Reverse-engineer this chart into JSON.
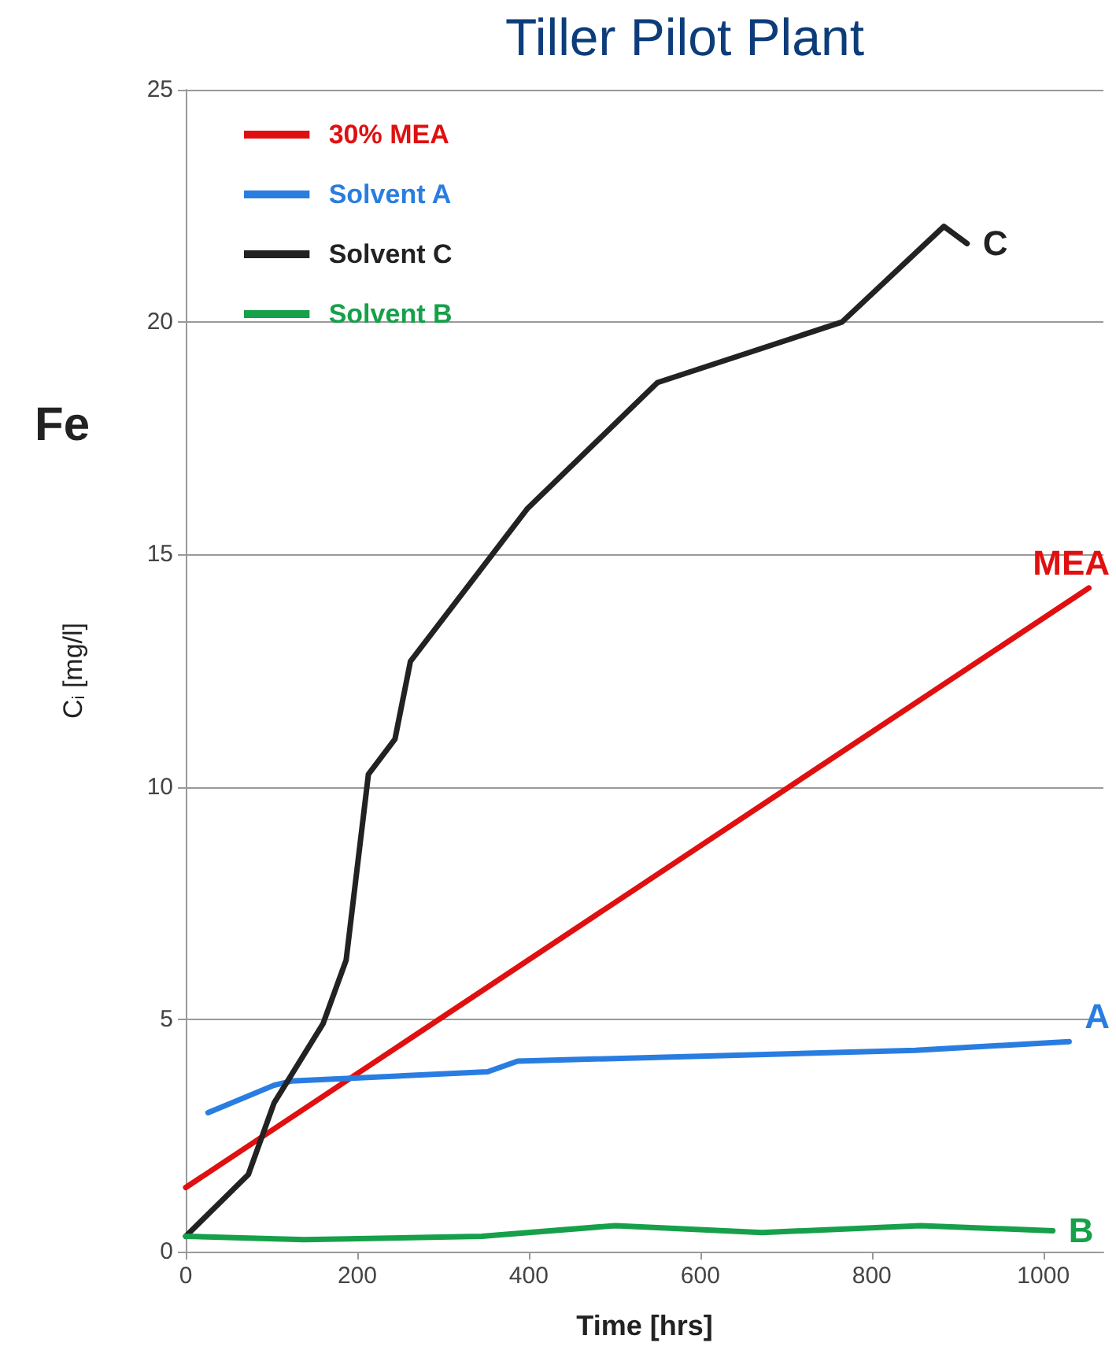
{
  "chart_data": {
    "type": "line",
    "title": "Tiller Pilot Plant",
    "xlabel": "Time [hrs]",
    "ylabel": "C$_{i}$ [mg/l]",
    "series": [
      {
        "name": "30% MEA",
        "color": "#e01010",
        "x": [
          0,
          1053
        ],
        "values": [
          1.38,
          14.28
        ]
      },
      {
        "name": "Solvent A",
        "color": "#2a7de0",
        "x": [
          26,
          103,
          123,
          352,
          387,
          851,
          1030
        ],
        "values": [
          2.99,
          3.58,
          3.67,
          3.87,
          4.1,
          4.33,
          4.52
        ]
      },
      {
        "name": "Solvent C",
        "color": "#222222",
        "x": [
          0,
          73,
          103,
          160,
          187,
          213,
          244,
          262,
          398,
          550,
          765,
          884,
          911
        ],
        "values": [
          0.33,
          1.66,
          3.2,
          4.9,
          6.27,
          10.27,
          11.03,
          12.7,
          15.98,
          18.7,
          20.0,
          22.06,
          21.69
        ]
      },
      {
        "name": "Solvent B",
        "color": "#16a04a",
        "x": [
          0,
          138,
          345,
          501,
          672,
          857,
          1011
        ],
        "values": [
          0.33,
          0.26,
          0.33,
          0.56,
          0.41,
          0.56,
          0.45
        ]
      }
    ],
    "xlim": [
      0,
      1070
    ],
    "xticks": [
      0,
      200,
      400,
      600,
      800,
      1000
    ],
    "ylim": [
      0,
      25
    ],
    "yticks": [
      0,
      5,
      10,
      15,
      20,
      25
    ],
    "grid": "y",
    "legend": "top left",
    "marker": "none",
    "line_style": "solid",
    "annotations": [
      "Fe",
      {
        "text": "C",
        "x": 911,
        "y": 21.69
      },
      {
        "text": "MEA",
        "x": 1053,
        "y": 14.28
      },
      {
        "text": "A",
        "x": 1030,
        "y": 4.52
      },
      {
        "text": "B",
        "x": 1011,
        "y": 0.45
      }
    ]
  }
}
